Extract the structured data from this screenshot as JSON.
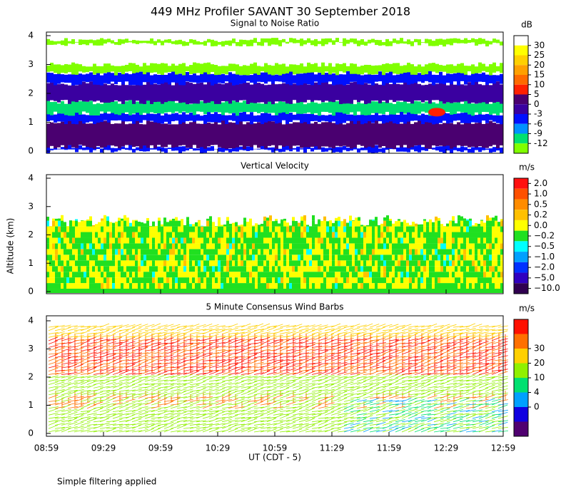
{
  "title": "449 MHz Profiler SAVANT 30 September 2018",
  "y_axis_label": "Altitude (km)",
  "x_axis_label": "UT  (CDT - 5)",
  "xticks": [
    "08:59",
    "09:29",
    "09:59",
    "10:29",
    "10:59",
    "11:29",
    "11:59",
    "12:29",
    "12:59"
  ],
  "yticks": [
    0,
    1,
    2,
    3,
    4
  ],
  "panels": [
    {
      "title": "Signal to Noise Ratio",
      "unit": "dB",
      "colorbar": {
        "labels": [
          30,
          25,
          20,
          15,
          10,
          5,
          0,
          -3,
          -6,
          -9,
          -12
        ],
        "colors": [
          "#ffffff",
          "#ffff00",
          "#ffd000",
          "#ffa000",
          "#ff6a00",
          "#ff2000",
          "#4a0070",
          "#3a00a0",
          "#0010ff",
          "#0090ff",
          "#00e070",
          "#80ff00"
        ]
      }
    },
    {
      "title": "Vertical Velocity",
      "unit": "m/s",
      "colorbar": {
        "labels": [
          {
            "value": 2,
            "label": "2.0"
          },
          {
            "value": 1,
            "label": "1.0"
          },
          0.5,
          0.2,
          {
            "value": 0,
            "label": "0.0"
          },
          {
            "value": -0.2,
            "label": "−0.2"
          },
          {
            "value": -0.5,
            "label": "−0.5"
          },
          {
            "value": -1,
            "label": "−1.0"
          },
          {
            "value": -2,
            "label": "−2.0"
          },
          {
            "value": -5,
            "label": "−5.0"
          },
          {
            "value": -10,
            "label": "−10.0"
          }
        ],
        "colors": [
          "#ff1010",
          "#ff5000",
          "#ff8c00",
          "#ffc000",
          "#ffff00",
          "#20e020",
          "#00ffff",
          "#00a0ff",
          "#0030ff",
          "#3000c0",
          "#300050"
        ]
      }
    },
    {
      "title": "5 Minute Consensus Wind Barbs",
      "unit": "m/s",
      "colorbar": {
        "labels": [
          30,
          20,
          10,
          4,
          0
        ],
        "colors": [
          "#ff1000",
          "#ff7000",
          "#ffd000",
          "#90f000",
          "#00e070",
          "#00a0ff",
          "#1000e0",
          "#500070"
        ]
      }
    }
  ],
  "note": "Simple filtering applied"
}
